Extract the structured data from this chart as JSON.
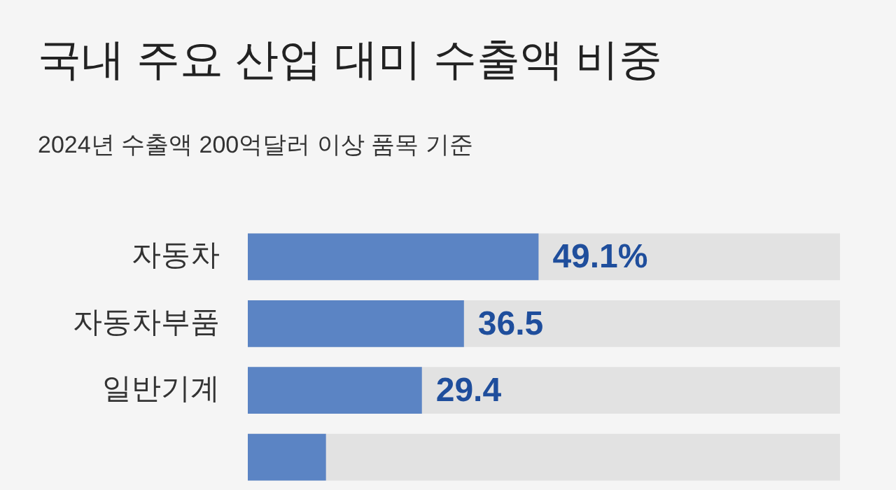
{
  "chart_data": {
    "type": "bar",
    "orientation": "horizontal",
    "title": "국내 주요 산업 대미 수출액 비중",
    "subtitle": "2024년 수출액 200억달러 이상 품목 기준",
    "categories": [
      "자동차",
      "자동차부품",
      "일반기계",
      null
    ],
    "values": [
      49.1,
      36.5,
      29.4,
      13.2
    ],
    "value_labels": [
      "49.1%",
      "36.5",
      "29.4",
      null
    ],
    "color": "#5b84c4",
    "xlim": [
      0,
      100
    ],
    "tick_labels": "y"
  }
}
